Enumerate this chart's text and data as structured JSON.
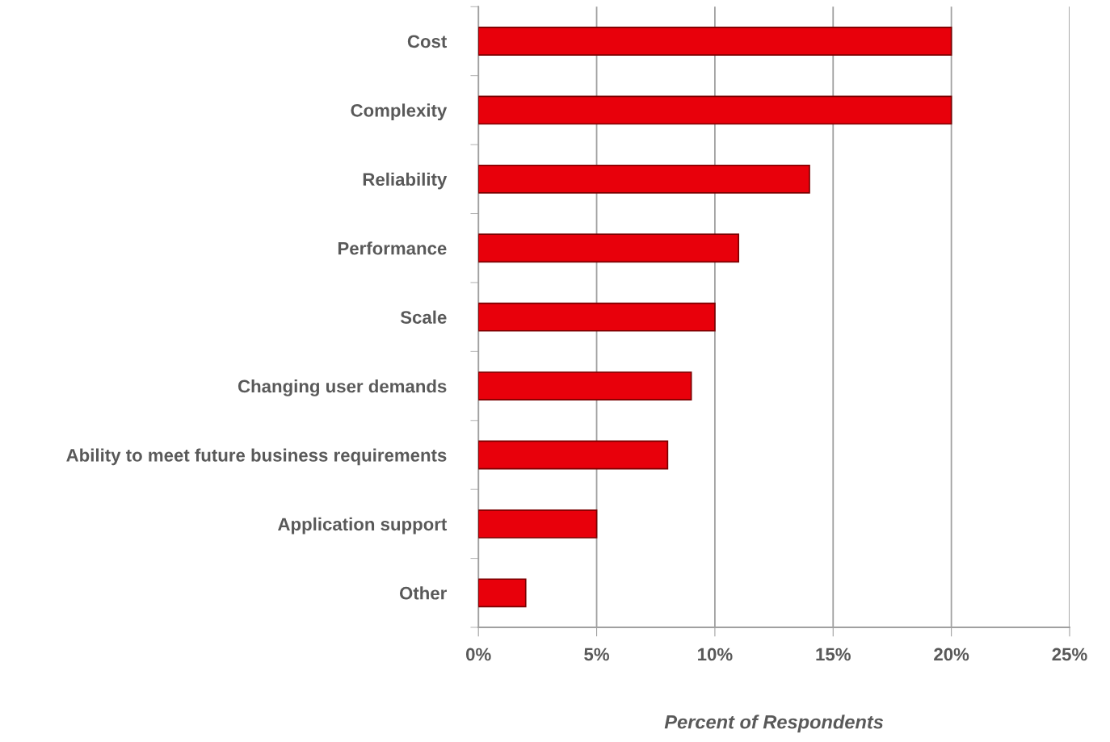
{
  "chart_data": {
    "type": "bar",
    "orientation": "horizontal",
    "categories": [
      "Cost",
      "Complexity",
      "Reliability",
      "Performance",
      "Scale",
      "Changing user demands",
      "Ability to meet future business requirements",
      "Application support",
      "Other"
    ],
    "values": [
      20,
      20,
      14,
      11,
      10,
      9,
      8,
      5,
      2
    ],
    "color": "#e8000b",
    "xlabel": "Percent of Respondents",
    "xlim": [
      0,
      25
    ],
    "xticks": [
      {
        "value": 0,
        "label": "0%"
      },
      {
        "value": 5,
        "label": "5%"
      },
      {
        "value": 10,
        "label": "10%"
      },
      {
        "value": 15,
        "label": "15%"
      },
      {
        "value": 20,
        "label": "20%"
      },
      {
        "value": 25,
        "label": "25%"
      }
    ],
    "grid": "x",
    "legend": false
  }
}
